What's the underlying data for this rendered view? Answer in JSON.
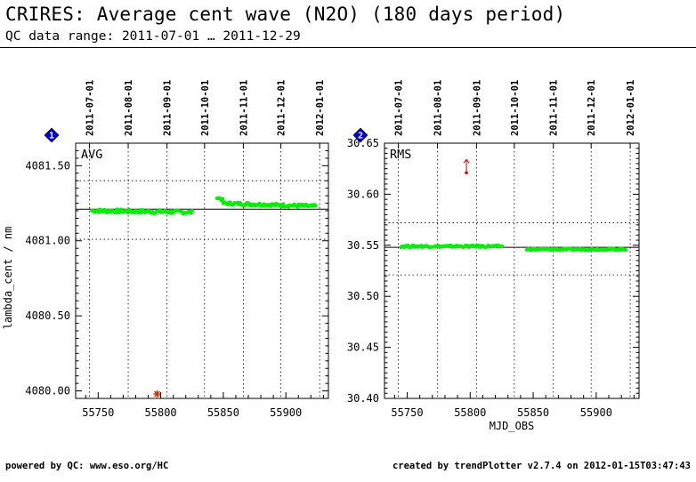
{
  "header": {
    "title": "CRIRES: Average cent wave (N2O) (180 days period)",
    "subtitle": "QC data range: 2011-07-01 … 2011-12-29"
  },
  "footer": {
    "left": "powered by QC: www.eso.org/HC",
    "right": "created by trendPlotter v2.7.4 on 2012-01-15T03:47:43"
  },
  "colors": {
    "data_points": "#00ee00",
    "outlier_star": "#cc3300",
    "outlier_arrow": "#dd0000",
    "marker": "#0000dd"
  },
  "chart_data": [
    {
      "type": "scatter",
      "marker_label": "1",
      "panel_label": "AVG",
      "ylabel": "lambda_cent / nm",
      "xlabel": "",
      "xlim": [
        55732,
        55934
      ],
      "ylim": [
        4079.95,
        4081.65
      ],
      "x_ticks": [
        55750,
        55800,
        55850,
        55900
      ],
      "y_ticks": [
        4080.0,
        4080.5,
        4081.0,
        4081.5
      ],
      "y_tick_labels": [
        "4080.00",
        "4080.50",
        "4081.00",
        "4081.50"
      ],
      "date_ticks": [
        "2011-07-01",
        "2011-08-01",
        "2011-09-01",
        "2011-10-01",
        "2011-11-01",
        "2011-12-01",
        "2012-01-01"
      ],
      "date_tick_mjd": [
        55743,
        55774,
        55805,
        55835,
        55866,
        55896,
        55927
      ],
      "mean_line": 4081.21,
      "limit_lines": [
        4081.4,
        4081.01
      ],
      "grid": "dotted",
      "segments": [
        {
          "x_start": 55745,
          "x_end": 55826,
          "y_start": 4081.2,
          "y_end": 4081.19,
          "wobble": 0.012
        },
        {
          "x_start": 55845,
          "x_end": 55850,
          "y_start": 4081.29,
          "y_end": 4081.27,
          "wobble": 0.008
        },
        {
          "x_start": 55850,
          "x_end": 55924,
          "y_start": 4081.25,
          "y_end": 4081.23,
          "wobble": 0.01
        }
      ],
      "outliers": [
        {
          "x": 55797,
          "y": 4079.98,
          "symbol": "star"
        }
      ]
    },
    {
      "type": "scatter",
      "marker_label": "2",
      "panel_label": "RMS",
      "ylabel": "",
      "xlabel": "MJD_OBS",
      "xlim": [
        55732,
        55934
      ],
      "ylim": [
        30.4,
        30.65
      ],
      "x_ticks": [
        55750,
        55800,
        55850,
        55900
      ],
      "y_ticks": [
        30.4,
        30.45,
        30.5,
        30.55,
        30.6,
        30.65
      ],
      "y_tick_labels": [
        "30.40",
        "30.45",
        "30.50",
        "30.55",
        "30.60",
        "30.65"
      ],
      "date_ticks": [
        "2011-07-01",
        "2011-08-01",
        "2011-09-01",
        "2011-10-01",
        "2011-11-01",
        "2011-12-01",
        "2012-01-01"
      ],
      "date_tick_mjd": [
        55743,
        55774,
        55805,
        55835,
        55866,
        55896,
        55927
      ],
      "mean_line": 30.548,
      "limit_lines": [
        30.572,
        30.521
      ],
      "grid": "dotted",
      "segments": [
        {
          "x_start": 55745,
          "x_end": 55826,
          "y_start": 30.549,
          "y_end": 30.549,
          "wobble": 0.0009
        },
        {
          "x_start": 55845,
          "x_end": 55924,
          "y_start": 30.546,
          "y_end": 30.546,
          "wobble": 0.0009
        }
      ],
      "outliers": [
        {
          "x": 55797,
          "y": 30.621,
          "symbol": "arrow-up"
        }
      ]
    }
  ]
}
